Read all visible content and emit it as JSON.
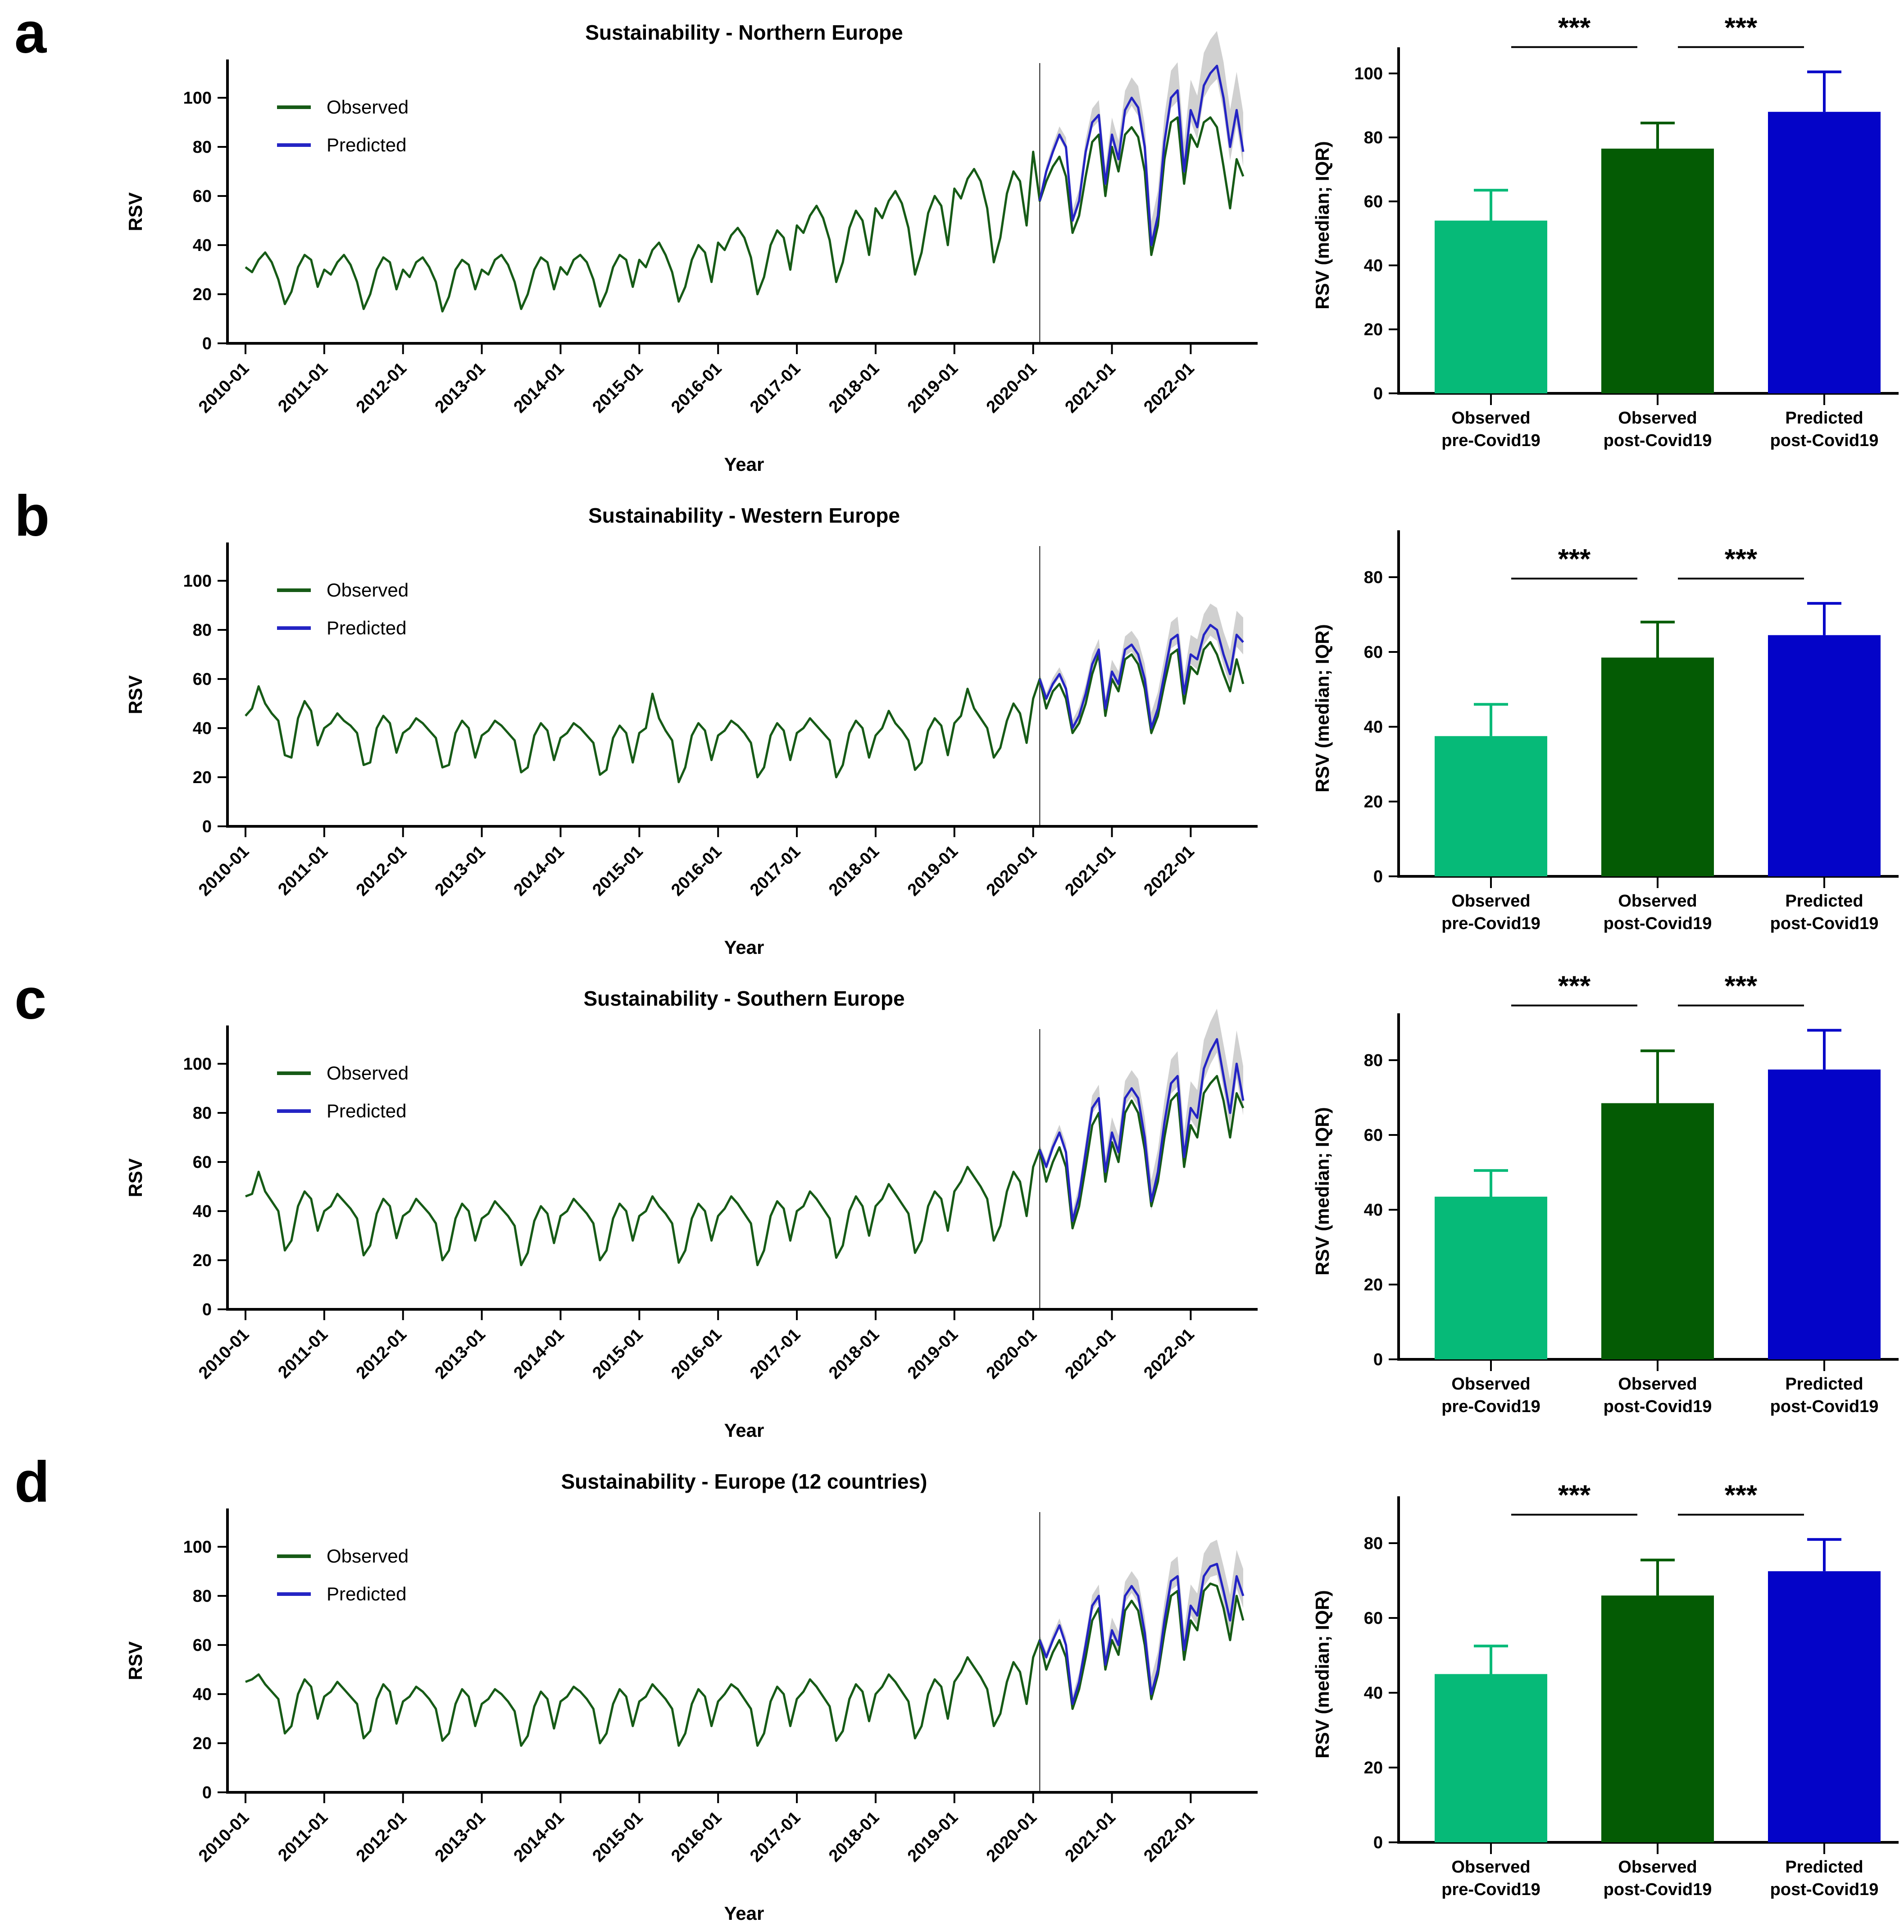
{
  "colors": {
    "observed_line": "#165b16",
    "predicted_line": "#2424c4",
    "ci_band": "#cbcbcb",
    "bar_pre": "#06ba78",
    "bar_post_observed": "#045b04",
    "bar_post_predicted": "#0404c8",
    "axis": "#000000",
    "divider": "#444444"
  },
  "common": {
    "x_tick_labels": [
      "2010-01",
      "2011-01",
      "2012-01",
      "2013-01",
      "2014-01",
      "2015-01",
      "2016-01",
      "2017-01",
      "2018-01",
      "2019-01",
      "2020-01",
      "2021-01",
      "2022-01"
    ],
    "ts_ylabel": "RSV",
    "ts_xlabel": "Year",
    "ts_yticks": [
      0,
      20,
      40,
      60,
      80,
      100
    ],
    "legend": [
      "Observed",
      "Predicted"
    ],
    "bar_ylabel": "RSV (median; IQR)",
    "bar_categories": [
      [
        "Observed",
        "pre-Covid19"
      ],
      [
        "Observed",
        "post-Covid19"
      ],
      [
        "Predicted",
        "post-Covid19"
      ]
    ],
    "significance_label": "***"
  },
  "chart_data": [
    {
      "panel": "a",
      "type": "line+bar",
      "title": "Sustainability - Northern Europe",
      "line": {
        "x_start": "2010-01",
        "x_end": "2022-09",
        "freq": "monthly",
        "covid_divider_index": 121,
        "observed": [
          31,
          29,
          34,
          37,
          33,
          26,
          16,
          21,
          31,
          36,
          34,
          23,
          30,
          28,
          33,
          36,
          32,
          25,
          14,
          20,
          30,
          35,
          33,
          22,
          30,
          27,
          33,
          35,
          31,
          25,
          13,
          19,
          30,
          34,
          32,
          22,
          30,
          28,
          34,
          36,
          32,
          25,
          14,
          20,
          30,
          35,
          33,
          22,
          31,
          28,
          34,
          36,
          33,
          26,
          15,
          21,
          31,
          36,
          34,
          23,
          34,
          31,
          38,
          41,
          36,
          29,
          17,
          23,
          34,
          40,
          37,
          25,
          41,
          38,
          44,
          47,
          43,
          35,
          20,
          27,
          40,
          46,
          43,
          30,
          48,
          45,
          52,
          56,
          51,
          42,
          25,
          33,
          47,
          54,
          50,
          36,
          55,
          51,
          58,
          62,
          57,
          47,
          28,
          37,
          53,
          60,
          56,
          40,
          63,
          59,
          67,
          71,
          66,
          55,
          33,
          43,
          61,
          70,
          66,
          48,
          78,
          58,
          66,
          72,
          76,
          68,
          45,
          52,
          68,
          82,
          85,
          60,
          80,
          70,
          85,
          88,
          84,
          70,
          36,
          48,
          75,
          90,
          92,
          65,
          85,
          80,
          90,
          92,
          88,
          72,
          55,
          75,
          68
        ],
        "predicted_start_index": 121,
        "predicted": [
          58,
          70,
          78,
          85,
          80,
          50,
          58,
          78,
          90,
          93,
          65,
          85,
          75,
          95,
          100,
          96,
          80,
          40,
          52,
          82,
          100,
          103,
          70,
          95,
          88,
          105,
          110,
          113,
          100,
          80,
          95,
          78
        ],
        "ci_upper_start": 2,
        "ci_upper_end": 16,
        "ci_lower_start": 1,
        "ci_lower_end": 6
      },
      "bar": {
        "values": [
          54,
          76.5,
          88
        ],
        "error_tops": [
          63.5,
          84.5,
          100.5
        ],
        "yticks": [
          0,
          20,
          40,
          60,
          80,
          100
        ],
        "significance": [
          {
            "between": [
              0,
              1
            ],
            "label": "***"
          },
          {
            "between": [
              1,
              2
            ],
            "label": "***"
          }
        ]
      }
    },
    {
      "panel": "b",
      "type": "line+bar",
      "title": "Sustainability - Western Europe",
      "line": {
        "x_start": "2010-01",
        "x_end": "2022-09",
        "freq": "monthly",
        "covid_divider_index": 121,
        "observed": [
          45,
          48,
          57,
          50,
          46,
          43,
          29,
          28,
          44,
          51,
          47,
          33,
          40,
          42,
          46,
          43,
          41,
          38,
          25,
          26,
          40,
          45,
          42,
          30,
          38,
          40,
          44,
          42,
          39,
          36,
          24,
          25,
          38,
          43,
          40,
          28,
          37,
          39,
          43,
          41,
          38,
          35,
          22,
          24,
          37,
          42,
          39,
          27,
          36,
          38,
          42,
          40,
          37,
          34,
          21,
          23,
          36,
          41,
          38,
          26,
          38,
          40,
          54,
          44,
          39,
          35,
          18,
          24,
          37,
          42,
          39,
          27,
          37,
          39,
          43,
          41,
          38,
          34,
          20,
          24,
          37,
          42,
          39,
          27,
          38,
          40,
          44,
          41,
          38,
          35,
          20,
          25,
          38,
          43,
          40,
          28,
          37,
          40,
          47,
          42,
          39,
          35,
          23,
          26,
          39,
          44,
          41,
          29,
          42,
          45,
          56,
          48,
          44,
          40,
          28,
          32,
          43,
          50,
          46,
          34,
          52,
          60,
          48,
          55,
          58,
          52,
          38,
          42,
          50,
          62,
          70,
          45,
          60,
          55,
          68,
          70,
          66,
          56,
          38,
          45,
          58,
          70,
          72,
          50,
          65,
          62,
          72,
          75,
          70,
          62,
          55,
          68,
          58
        ],
        "predicted_start_index": 121,
        "predicted": [
          60,
          52,
          58,
          62,
          56,
          40,
          45,
          54,
          66,
          72,
          48,
          63,
          58,
          72,
          74,
          70,
          60,
          40,
          48,
          62,
          76,
          78,
          54,
          70,
          68,
          78,
          82,
          80,
          70,
          62,
          78,
          75
        ],
        "ci_upper_start": 2,
        "ci_upper_end": 10,
        "ci_lower_start": 1,
        "ci_lower_end": 5
      },
      "bar": {
        "values": [
          37.5,
          58.5,
          64.5
        ],
        "error_tops": [
          46,
          68,
          73
        ],
        "yticks": [
          0,
          20,
          40,
          60,
          80
        ],
        "significance": [
          {
            "between": [
              0,
              1
            ],
            "label": "***"
          },
          {
            "between": [
              1,
              2
            ],
            "label": "***"
          }
        ]
      }
    },
    {
      "panel": "c",
      "type": "line+bar",
      "title": "Sustainability - Southern Europe",
      "line": {
        "x_start": "2010-01",
        "x_end": "2022-09",
        "freq": "monthly",
        "covid_divider_index": 121,
        "observed": [
          46,
          47,
          56,
          48,
          44,
          40,
          24,
          28,
          42,
          48,
          45,
          32,
          40,
          42,
          47,
          44,
          41,
          37,
          22,
          26,
          39,
          45,
          42,
          29,
          38,
          40,
          45,
          42,
          39,
          35,
          20,
          24,
          37,
          43,
          40,
          28,
          37,
          39,
          44,
          41,
          38,
          34,
          18,
          23,
          36,
          42,
          39,
          27,
          38,
          40,
          45,
          42,
          39,
          35,
          20,
          24,
          37,
          43,
          40,
          28,
          38,
          40,
          46,
          42,
          39,
          35,
          19,
          24,
          37,
          43,
          40,
          28,
          38,
          41,
          46,
          43,
          39,
          35,
          18,
          24,
          38,
          44,
          41,
          28,
          40,
          42,
          48,
          45,
          41,
          37,
          21,
          26,
          40,
          46,
          42,
          30,
          42,
          45,
          51,
          47,
          43,
          39,
          23,
          28,
          42,
          48,
          45,
          32,
          48,
          52,
          58,
          54,
          50,
          45,
          28,
          34,
          48,
          56,
          52,
          38,
          58,
          65,
          52,
          60,
          66,
          58,
          33,
          42,
          58,
          75,
          80,
          52,
          68,
          60,
          80,
          85,
          80,
          65,
          42,
          52,
          70,
          85,
          88,
          58,
          75,
          70,
          88,
          92,
          95,
          85,
          70,
          88,
          82
        ],
        "predicted_start_index": 121,
        "predicted": [
          65,
          58,
          66,
          72,
          64,
          36,
          46,
          64,
          82,
          86,
          56,
          72,
          64,
          86,
          90,
          86,
          70,
          44,
          56,
          76,
          92,
          95,
          62,
          82,
          78,
          98,
          105,
          110,
          95,
          80,
          100,
          85
        ],
        "ci_upper_start": 2,
        "ci_upper_end": 14,
        "ci_lower_start": 1,
        "ci_lower_end": 6
      },
      "bar": {
        "values": [
          43.5,
          68.5,
          77.5
        ],
        "error_tops": [
          50.5,
          82.5,
          88
        ],
        "yticks": [
          0,
          20,
          40,
          60,
          80
        ],
        "significance": [
          {
            "between": [
              0,
              1
            ],
            "label": "***"
          },
          {
            "between": [
              1,
              2
            ],
            "label": "***"
          }
        ]
      }
    },
    {
      "panel": "d",
      "type": "line+bar",
      "title": "Sustainability - Europe (12 countries)",
      "line": {
        "x_start": "2010-01",
        "x_end": "2022-09",
        "freq": "monthly",
        "covid_divider_index": 121,
        "observed": [
          45,
          46,
          48,
          44,
          41,
          38,
          24,
          27,
          40,
          46,
          43,
          30,
          39,
          41,
          45,
          42,
          39,
          36,
          22,
          25,
          38,
          44,
          41,
          28,
          37,
          39,
          43,
          41,
          38,
          34,
          21,
          24,
          36,
          42,
          39,
          27,
          36,
          38,
          42,
          40,
          37,
          33,
          19,
          23,
          35,
          41,
          38,
          26,
          37,
          39,
          43,
          41,
          38,
          34,
          20,
          24,
          36,
          42,
          39,
          27,
          37,
          39,
          44,
          41,
          38,
          34,
          19,
          24,
          36,
          42,
          39,
          27,
          37,
          40,
          44,
          42,
          38,
          34,
          19,
          24,
          37,
          43,
          40,
          27,
          38,
          41,
          46,
          43,
          39,
          35,
          21,
          25,
          38,
          44,
          41,
          29,
          40,
          43,
          48,
          45,
          41,
          37,
          22,
          27,
          40,
          46,
          43,
          30,
          45,
          49,
          55,
          51,
          47,
          42,
          27,
          32,
          45,
          53,
          49,
          36,
          55,
          62,
          50,
          57,
          62,
          55,
          34,
          42,
          55,
          70,
          75,
          50,
          62,
          56,
          74,
          78,
          74,
          60,
          38,
          48,
          65,
          80,
          82,
          54,
          70,
          66,
          82,
          85,
          84,
          75,
          62,
          80,
          70
        ],
        "predicted_start_index": 121,
        "predicted": [
          62,
          55,
          62,
          68,
          60,
          36,
          45,
          60,
          76,
          80,
          52,
          66,
          60,
          80,
          84,
          80,
          65,
          40,
          50,
          70,
          86,
          88,
          58,
          76,
          72,
          88,
          92,
          93,
          82,
          70,
          88,
          80
        ],
        "ci_upper_start": 2,
        "ci_upper_end": 11,
        "ci_lower_start": 1,
        "ci_lower_end": 5
      },
      "bar": {
        "values": [
          45,
          66,
          72.5
        ],
        "error_tops": [
          52.5,
          75.5,
          81
        ],
        "yticks": [
          0,
          20,
          40,
          60,
          80
        ],
        "significance": [
          {
            "between": [
              0,
              1
            ],
            "label": "***"
          },
          {
            "between": [
              1,
              2
            ],
            "label": "***"
          }
        ]
      }
    }
  ]
}
